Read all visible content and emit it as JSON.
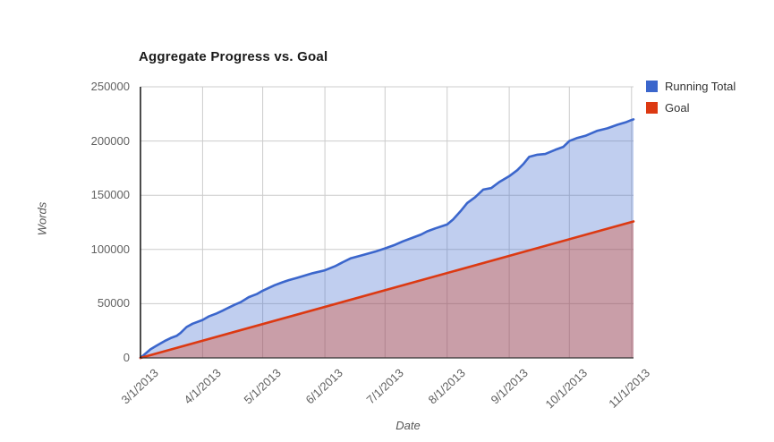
{
  "title": "Aggregate Progress vs. Goal",
  "colors": {
    "running_total": "#3b66cc",
    "goal": "#dc3912",
    "gridline": "#cccccc",
    "axis_line": "#333333",
    "background": "#ffffff"
  },
  "legend": [
    {
      "label": "Running Total",
      "color": "#3b66cc"
    },
    {
      "label": "Goal",
      "color": "#dc3912"
    }
  ],
  "axes": {
    "y": {
      "title": "Words",
      "tick_labels": [
        "0",
        "50000",
        "100000",
        "150000",
        "200000",
        "250000"
      ]
    },
    "x": {
      "title": "Date",
      "tick_labels": [
        "3/1/2013",
        "4/1/2013",
        "5/1/2013",
        "6/1/2013",
        "7/1/2013",
        "8/1/2013",
        "9/1/2013",
        "10/1/2013",
        "11/1/2013"
      ]
    }
  },
  "chart_data": {
    "type": "area",
    "title": "Aggregate Progress vs. Goal",
    "xlabel": "Date",
    "ylabel": "Words",
    "ylim": [
      0,
      250000
    ],
    "y_ticks": [
      0,
      50000,
      100000,
      150000,
      200000,
      250000
    ],
    "x_ticks": [
      "3/1/2013",
      "4/1/2013",
      "5/1/2013",
      "6/1/2013",
      "7/1/2013",
      "8/1/2013",
      "9/1/2013",
      "10/1/2013",
      "11/1/2013"
    ],
    "x_domain": [
      "3/1/2013",
      "11/2/2013"
    ],
    "grid": true,
    "legend_position": "right-top",
    "fill_opacity": 0.32,
    "series": [
      {
        "name": "Running Total",
        "color": "#3b66cc",
        "points": [
          [
            "3/1/2013",
            0
          ],
          [
            "3/3/2013",
            3200
          ],
          [
            "3/6/2013",
            7900
          ],
          [
            "3/9/2013",
            11200
          ],
          [
            "3/13/2013",
            15500
          ],
          [
            "3/16/2013",
            18200
          ],
          [
            "3/19/2013",
            20300
          ],
          [
            "3/21/2013",
            23000
          ],
          [
            "3/24/2013",
            28500
          ],
          [
            "3/27/2013",
            31500
          ],
          [
            "4/1/2013",
            35000
          ],
          [
            "4/4/2013",
            38200
          ],
          [
            "4/8/2013",
            41000
          ],
          [
            "4/11/2013",
            43600
          ],
          [
            "4/14/2013",
            46400
          ],
          [
            "4/17/2013",
            49000
          ],
          [
            "4/20/2013",
            51400
          ],
          [
            "4/24/2013",
            56000
          ],
          [
            "4/28/2013",
            58800
          ],
          [
            "5/1/2013",
            62000
          ],
          [
            "5/4/2013",
            64500
          ],
          [
            "5/7/2013",
            67100
          ],
          [
            "5/11/2013",
            69800
          ],
          [
            "5/14/2013",
            71700
          ],
          [
            "5/18/2013",
            73800
          ],
          [
            "5/21/2013",
            75400
          ],
          [
            "5/26/2013",
            78100
          ],
          [
            "6/1/2013",
            80800
          ],
          [
            "6/6/2013",
            84500
          ],
          [
            "6/10/2013",
            88300
          ],
          [
            "6/14/2013",
            91900
          ],
          [
            "6/18/2013",
            93800
          ],
          [
            "6/21/2013",
            95400
          ],
          [
            "6/26/2013",
            97900
          ],
          [
            "7/1/2013",
            101000
          ],
          [
            "7/6/2013",
            104300
          ],
          [
            "7/10/2013",
            107500
          ],
          [
            "7/15/2013",
            111000
          ],
          [
            "7/19/2013",
            113800
          ],
          [
            "7/22/2013",
            116700
          ],
          [
            "7/26/2013",
            119400
          ],
          [
            "8/1/2013",
            123000
          ],
          [
            "8/4/2013",
            127700
          ],
          [
            "8/8/2013",
            136000
          ],
          [
            "8/11/2013",
            142800
          ],
          [
            "8/15/2013",
            148300
          ],
          [
            "8/19/2013",
            155200
          ],
          [
            "8/23/2013",
            156600
          ],
          [
            "8/27/2013",
            162100
          ],
          [
            "9/1/2013",
            167600
          ],
          [
            "9/5/2013",
            173100
          ],
          [
            "9/8/2013",
            178700
          ],
          [
            "9/11/2013",
            185500
          ],
          [
            "9/15/2013",
            187400
          ],
          [
            "9/19/2013",
            188000
          ],
          [
            "9/24/2013",
            191900
          ],
          [
            "9/28/2013",
            194600
          ],
          [
            "10/1/2013",
            200000
          ],
          [
            "10/5/2013",
            202900
          ],
          [
            "10/9/2013",
            204800
          ],
          [
            "10/15/2013",
            209500
          ],
          [
            "10/20/2013",
            211700
          ],
          [
            "10/25/2013",
            215000
          ],
          [
            "10/29/2013",
            217200
          ],
          [
            "11/1/2013",
            219400
          ],
          [
            "11/2/2013",
            220000
          ]
        ]
      },
      {
        "name": "Goal",
        "color": "#dc3912",
        "points": [
          [
            "3/1/2013",
            0
          ],
          [
            "11/2/2013",
            125800
          ]
        ]
      }
    ]
  }
}
